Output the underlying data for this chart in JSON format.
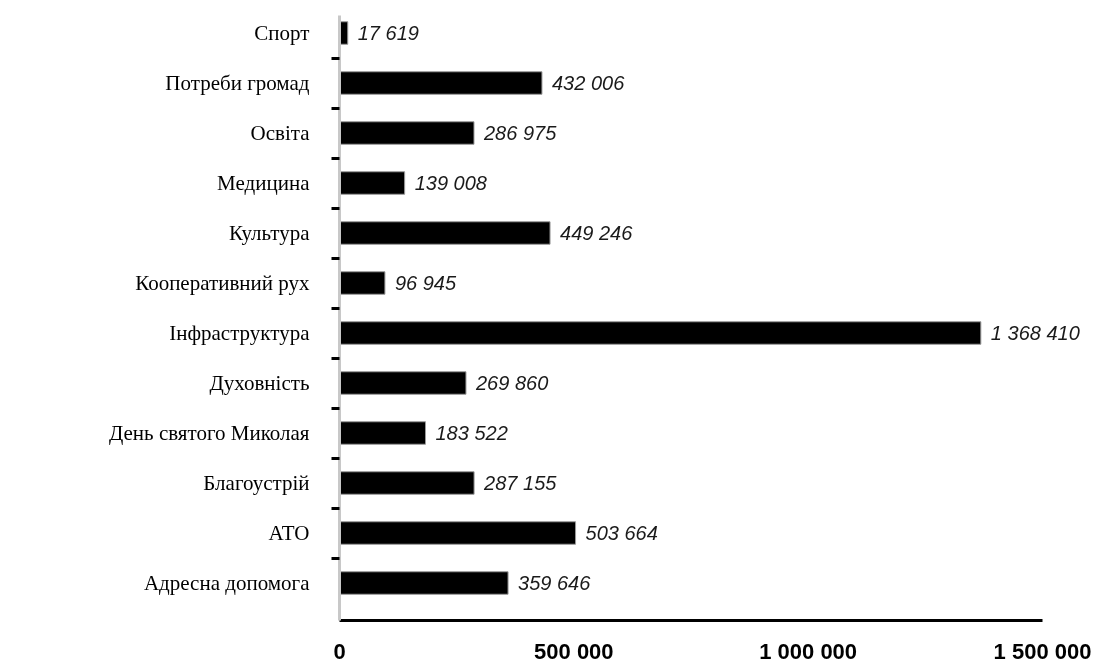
{
  "chart_data": {
    "type": "bar",
    "orientation": "horizontal",
    "categories": [
      "Спорт",
      "Потреби громад",
      "Освіта",
      "Медицина",
      "Культура",
      "Кооперативний рух",
      "Інфраструктура",
      "Духовність",
      "День святого Миколая",
      "Благоустрій",
      "АТО",
      "Адресна допомога"
    ],
    "values": [
      17619,
      432006,
      286975,
      139008,
      449246,
      96945,
      1368410,
      269860,
      183522,
      287155,
      503664,
      359646
    ],
    "color": "#000000",
    "value_labels": [
      "17 619",
      "432 006",
      "286 975",
      "139 008",
      "449 246",
      "96 945",
      "1 368 410",
      "269 860",
      "183 522",
      "287 155",
      "503 664",
      "359 646"
    ],
    "xlim": [
      0,
      1500000
    ],
    "xticks": [
      0,
      {
        "value": 500000,
        "label": "500 000"
      },
      {
        "value": 1000000,
        "label": "1 000 000"
      },
      {
        "value": 1500000,
        "label": "1 500 000"
      }
    ]
  }
}
